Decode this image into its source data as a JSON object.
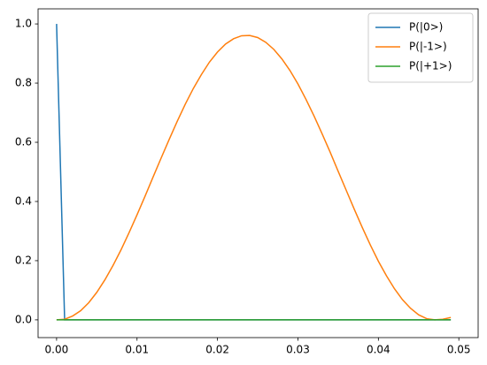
{
  "chart_data": {
    "type": "line",
    "x": [
      0,
      0.001,
      0.002,
      0.003,
      0.004,
      0.005,
      0.006,
      0.007,
      0.008,
      0.009,
      0.01,
      0.011,
      0.012,
      0.013,
      0.014,
      0.015,
      0.016,
      0.017,
      0.018,
      0.019,
      0.02,
      0.021,
      0.022,
      0.023,
      0.024,
      0.025,
      0.026,
      0.027,
      0.028,
      0.029,
      0.03,
      0.031,
      0.032,
      0.033,
      0.034,
      0.035,
      0.036,
      0.037,
      0.038,
      0.039,
      0.04,
      0.041,
      0.042,
      0.043,
      0.044,
      0.045,
      0.046,
      0.047,
      0.048,
      0.049
    ],
    "series": [
      {
        "name": "P(|0>)",
        "color": "#1f77b4",
        "values": [
          1,
          0,
          0,
          0,
          0,
          0,
          0,
          0,
          0,
          0,
          0,
          0,
          0,
          0,
          0,
          0,
          0,
          0,
          0,
          0,
          0,
          0,
          0,
          0,
          0,
          0,
          0,
          0,
          0,
          0,
          0,
          0,
          0,
          0,
          0,
          0,
          0,
          0,
          0,
          0,
          0,
          0,
          0,
          0,
          0,
          0,
          0,
          0,
          0,
          0
        ]
      },
      {
        "name": "P(|-1>)",
        "color": "#ff7f0e",
        "values": [
          0,
          0.002,
          0.013,
          0.031,
          0.058,
          0.093,
          0.135,
          0.183,
          0.236,
          0.294,
          0.355,
          0.418,
          0.483,
          0.547,
          0.61,
          0.671,
          0.729,
          0.782,
          0.829,
          0.871,
          0.905,
          0.932,
          0.95,
          0.96,
          0.961,
          0.954,
          0.938,
          0.914,
          0.882,
          0.843,
          0.797,
          0.745,
          0.689,
          0.629,
          0.567,
          0.502,
          0.438,
          0.374,
          0.312,
          0.253,
          0.198,
          0.149,
          0.105,
          0.068,
          0.039,
          0.017,
          0.004,
          0,
          0.002,
          0.008
        ]
      },
      {
        "name": "P(|+1>)",
        "color": "#2ca02c",
        "values": [
          0,
          0,
          0,
          0,
          0,
          0,
          0,
          0,
          0,
          0,
          0,
          0,
          0,
          0,
          0,
          0,
          0,
          0,
          0,
          0,
          0,
          0,
          0,
          0,
          0,
          0,
          0,
          0,
          0,
          0,
          0,
          0,
          0,
          0,
          0,
          0,
          0,
          0,
          0,
          0,
          0,
          0,
          0,
          0,
          0,
          0,
          0,
          0,
          0,
          0
        ]
      }
    ],
    "xlim": [
      -0.0023,
      0.0524
    ],
    "ylim": [
      -0.06,
      1.051
    ],
    "xticks": [
      {
        "value": 0,
        "label": "0.00"
      },
      0.01,
      0.02,
      0.03,
      0.04,
      0.05
    ],
    "yticks": [
      {
        "value": 0,
        "label": "0.0"
      },
      0.2,
      0.4,
      0.6,
      0.8,
      {
        "value": 1,
        "label": "1.0"
      }
    ],
    "grid": false,
    "legend": "upper right"
  }
}
